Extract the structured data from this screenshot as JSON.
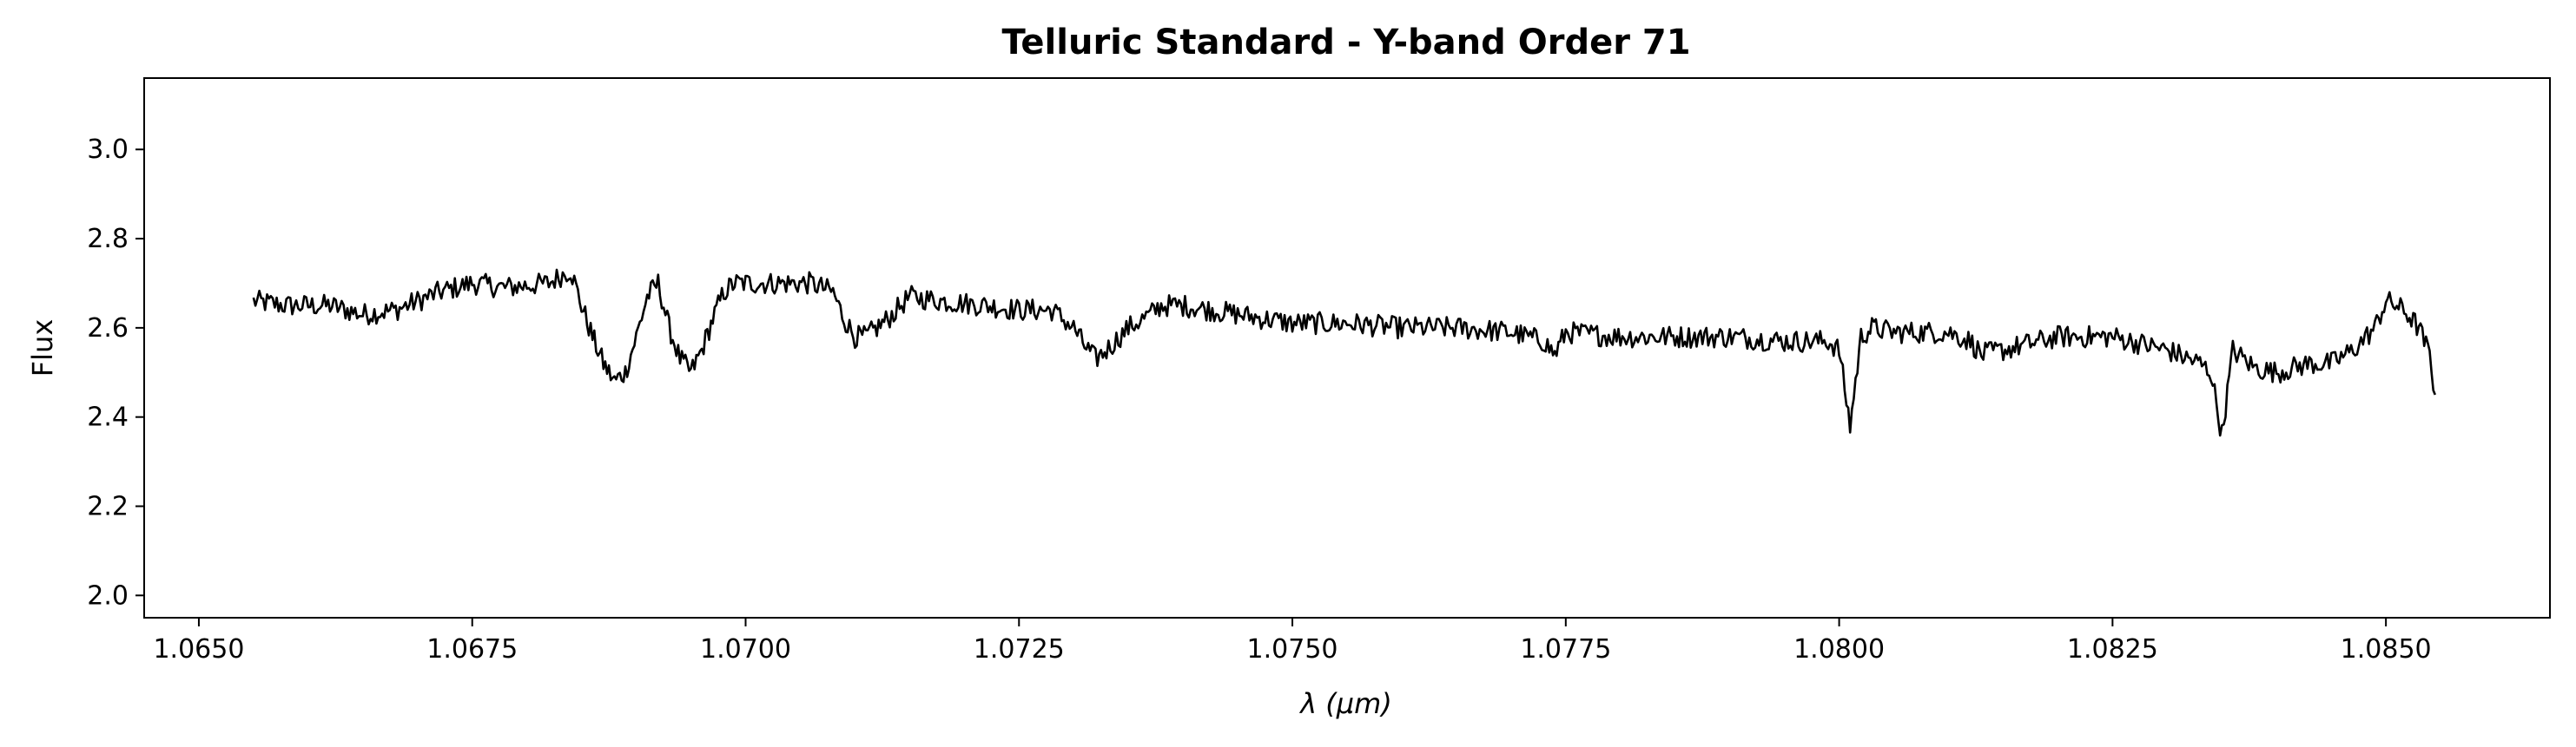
{
  "chart_data": {
    "type": "line",
    "title": "Telluric Standard - Y-band Order 71",
    "xlabel": "λ (μm)",
    "ylabel": "Flux",
    "xlim": [
      1.0645,
      1.0865
    ],
    "ylim": [
      1.95,
      3.16
    ],
    "x_ticks": [
      1.065,
      1.0675,
      1.07,
      1.0725,
      1.075,
      1.0775,
      1.08,
      1.0825,
      1.085
    ],
    "x_tick_labels": [
      "1.0650",
      "1.0675",
      "1.0700",
      "1.0725",
      "1.0750",
      "1.0775",
      "1.0800",
      "1.0825",
      "1.0850"
    ],
    "y_ticks": [
      2.0,
      2.2,
      2.4,
      2.6,
      2.8,
      3.0
    ],
    "y_tick_labels": [
      "2.0",
      "2.2",
      "2.4",
      "2.6",
      "2.8",
      "3.0"
    ],
    "grid": false,
    "line_color": "#000000",
    "series": [
      {
        "x": [
          1.0655,
          1.0658,
          1.0662,
          1.0665,
          1.0668,
          1.0672,
          1.0675,
          1.0678,
          1.0682,
          1.0684,
          1.0685,
          1.0686,
          1.0687,
          1.0688,
          1.0689,
          1.069,
          1.0691,
          1.0692,
          1.0693,
          1.0694,
          1.0695,
          1.0696,
          1.0697,
          1.0698,
          1.0699,
          1.07,
          1.0703,
          1.0706,
          1.0708,
          1.0709,
          1.071,
          1.0711,
          1.0712,
          1.0713,
          1.0715,
          1.0718,
          1.0722,
          1.0725,
          1.0728,
          1.073,
          1.0731,
          1.0732,
          1.0733,
          1.0735,
          1.0737,
          1.0738,
          1.074,
          1.0745,
          1.075,
          1.0755,
          1.076,
          1.0765,
          1.077,
          1.0773,
          1.0774,
          1.0775,
          1.078,
          1.0785,
          1.079,
          1.0795,
          1.0799,
          1.08,
          1.0801,
          1.0802,
          1.0803,
          1.0805,
          1.081,
          1.0812,
          1.0813,
          1.0815,
          1.082,
          1.0825,
          1.083,
          1.0833,
          1.0834,
          1.0835,
          1.0836,
          1.0838,
          1.084,
          1.0843,
          1.0845,
          1.0847,
          1.0849,
          1.085,
          1.0851,
          1.0852,
          1.0853,
          1.0854,
          1.08545
        ],
        "y": [
          2.66,
          2.65,
          2.65,
          2.63,
          2.64,
          2.68,
          2.7,
          2.69,
          2.7,
          2.73,
          2.65,
          2.58,
          2.52,
          2.48,
          2.5,
          2.58,
          2.67,
          2.7,
          2.6,
          2.53,
          2.5,
          2.55,
          2.62,
          2.68,
          2.7,
          2.7,
          2.7,
          2.7,
          2.68,
          2.62,
          2.58,
          2.58,
          2.6,
          2.62,
          2.67,
          2.66,
          2.65,
          2.64,
          2.64,
          2.6,
          2.56,
          2.53,
          2.55,
          2.6,
          2.63,
          2.65,
          2.65,
          2.63,
          2.61,
          2.61,
          2.6,
          2.6,
          2.59,
          2.57,
          2.54,
          2.59,
          2.58,
          2.58,
          2.58,
          2.57,
          2.57,
          2.55,
          2.38,
          2.58,
          2.6,
          2.59,
          2.59,
          2.57,
          2.54,
          2.55,
          2.58,
          2.58,
          2.55,
          2.52,
          2.5,
          2.36,
          2.55,
          2.51,
          2.5,
          2.52,
          2.52,
          2.55,
          2.6,
          2.66,
          2.65,
          2.63,
          2.6,
          2.54,
          2.45
        ]
      }
    ]
  }
}
